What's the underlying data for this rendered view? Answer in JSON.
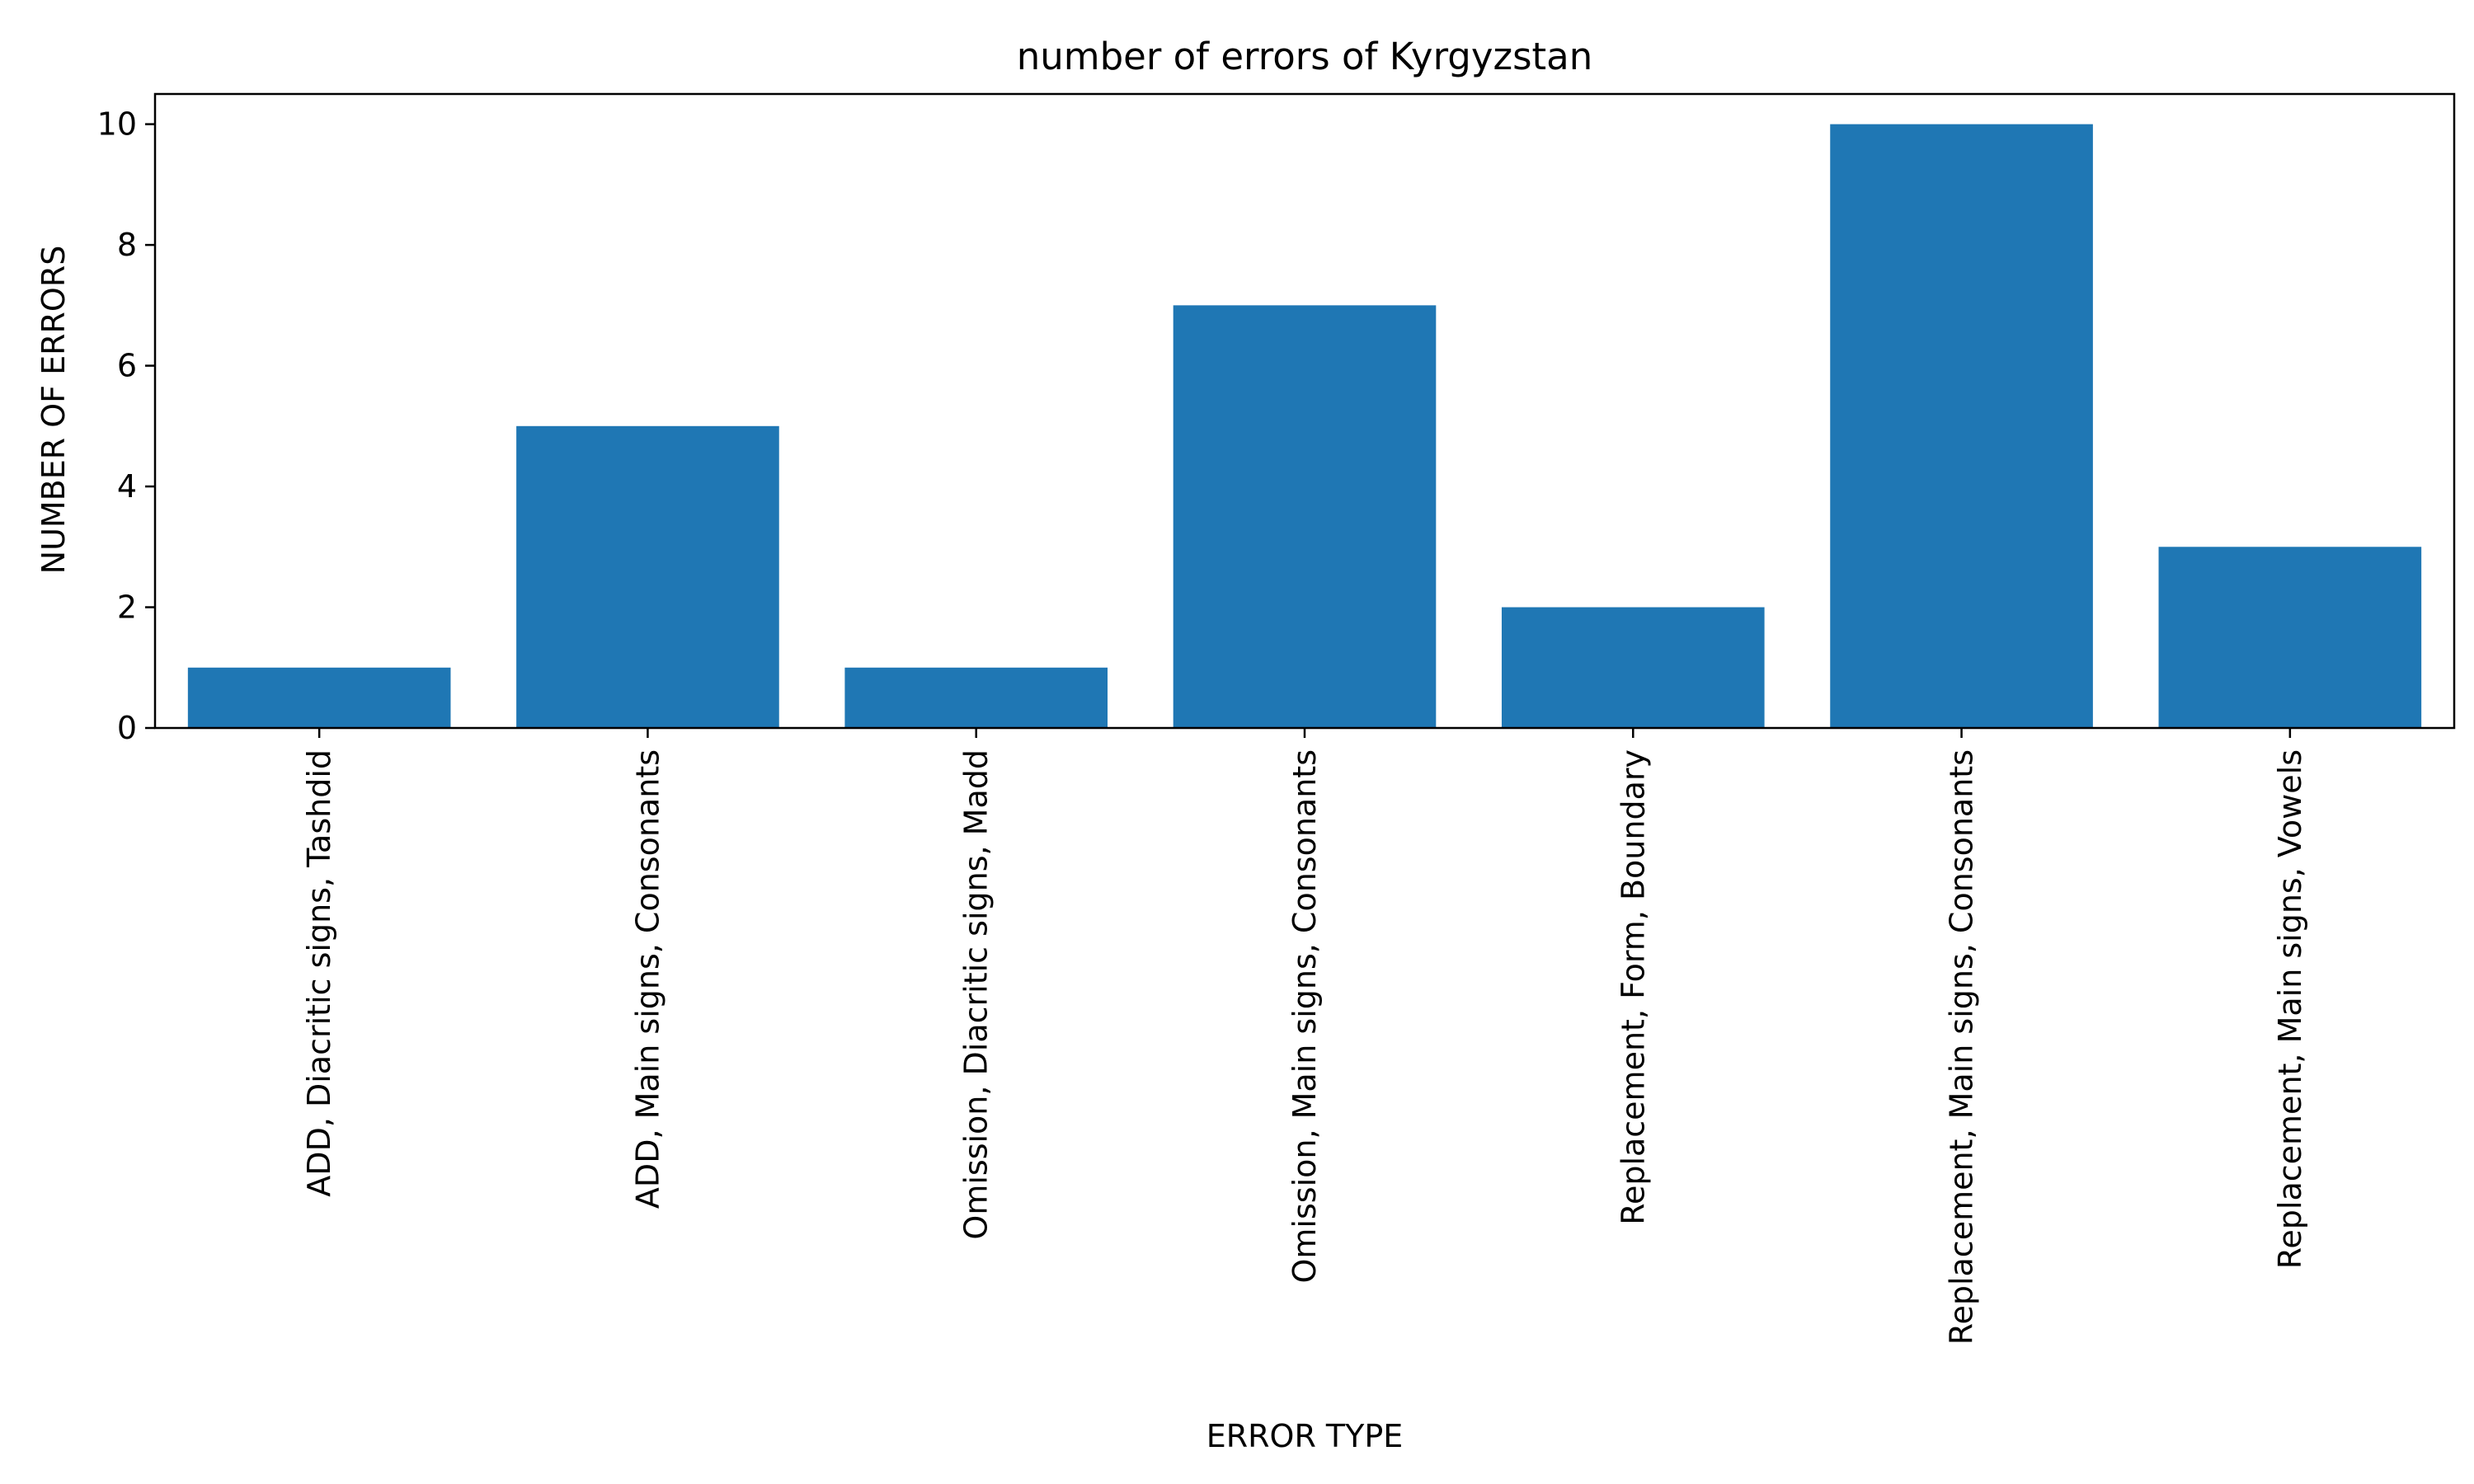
{
  "chart_data": {
    "type": "bar",
    "title": "number of errors of Kyrgyzstan",
    "xlabel": "ERROR TYPE",
    "ylabel": "NUMBER OF ERRORS",
    "categories": [
      "ADD, Diacritic signs, Tashdid",
      "ADD, Main signs, Consonants",
      "Omission, Diacritic signs, Madd",
      "Omission, Main signs, Consonants",
      "Replacement, Form, Boundary",
      "Replacement, Main signs, Consonants",
      "Replacement, Main signs, Vowels"
    ],
    "values": [
      1,
      5,
      1,
      7,
      2,
      10,
      3
    ],
    "ylim": [
      0,
      10.5
    ],
    "yticks": [
      0,
      2,
      4,
      6,
      8,
      10
    ],
    "bar_color": "#1f77b4",
    "grid": false,
    "legend": "none"
  }
}
